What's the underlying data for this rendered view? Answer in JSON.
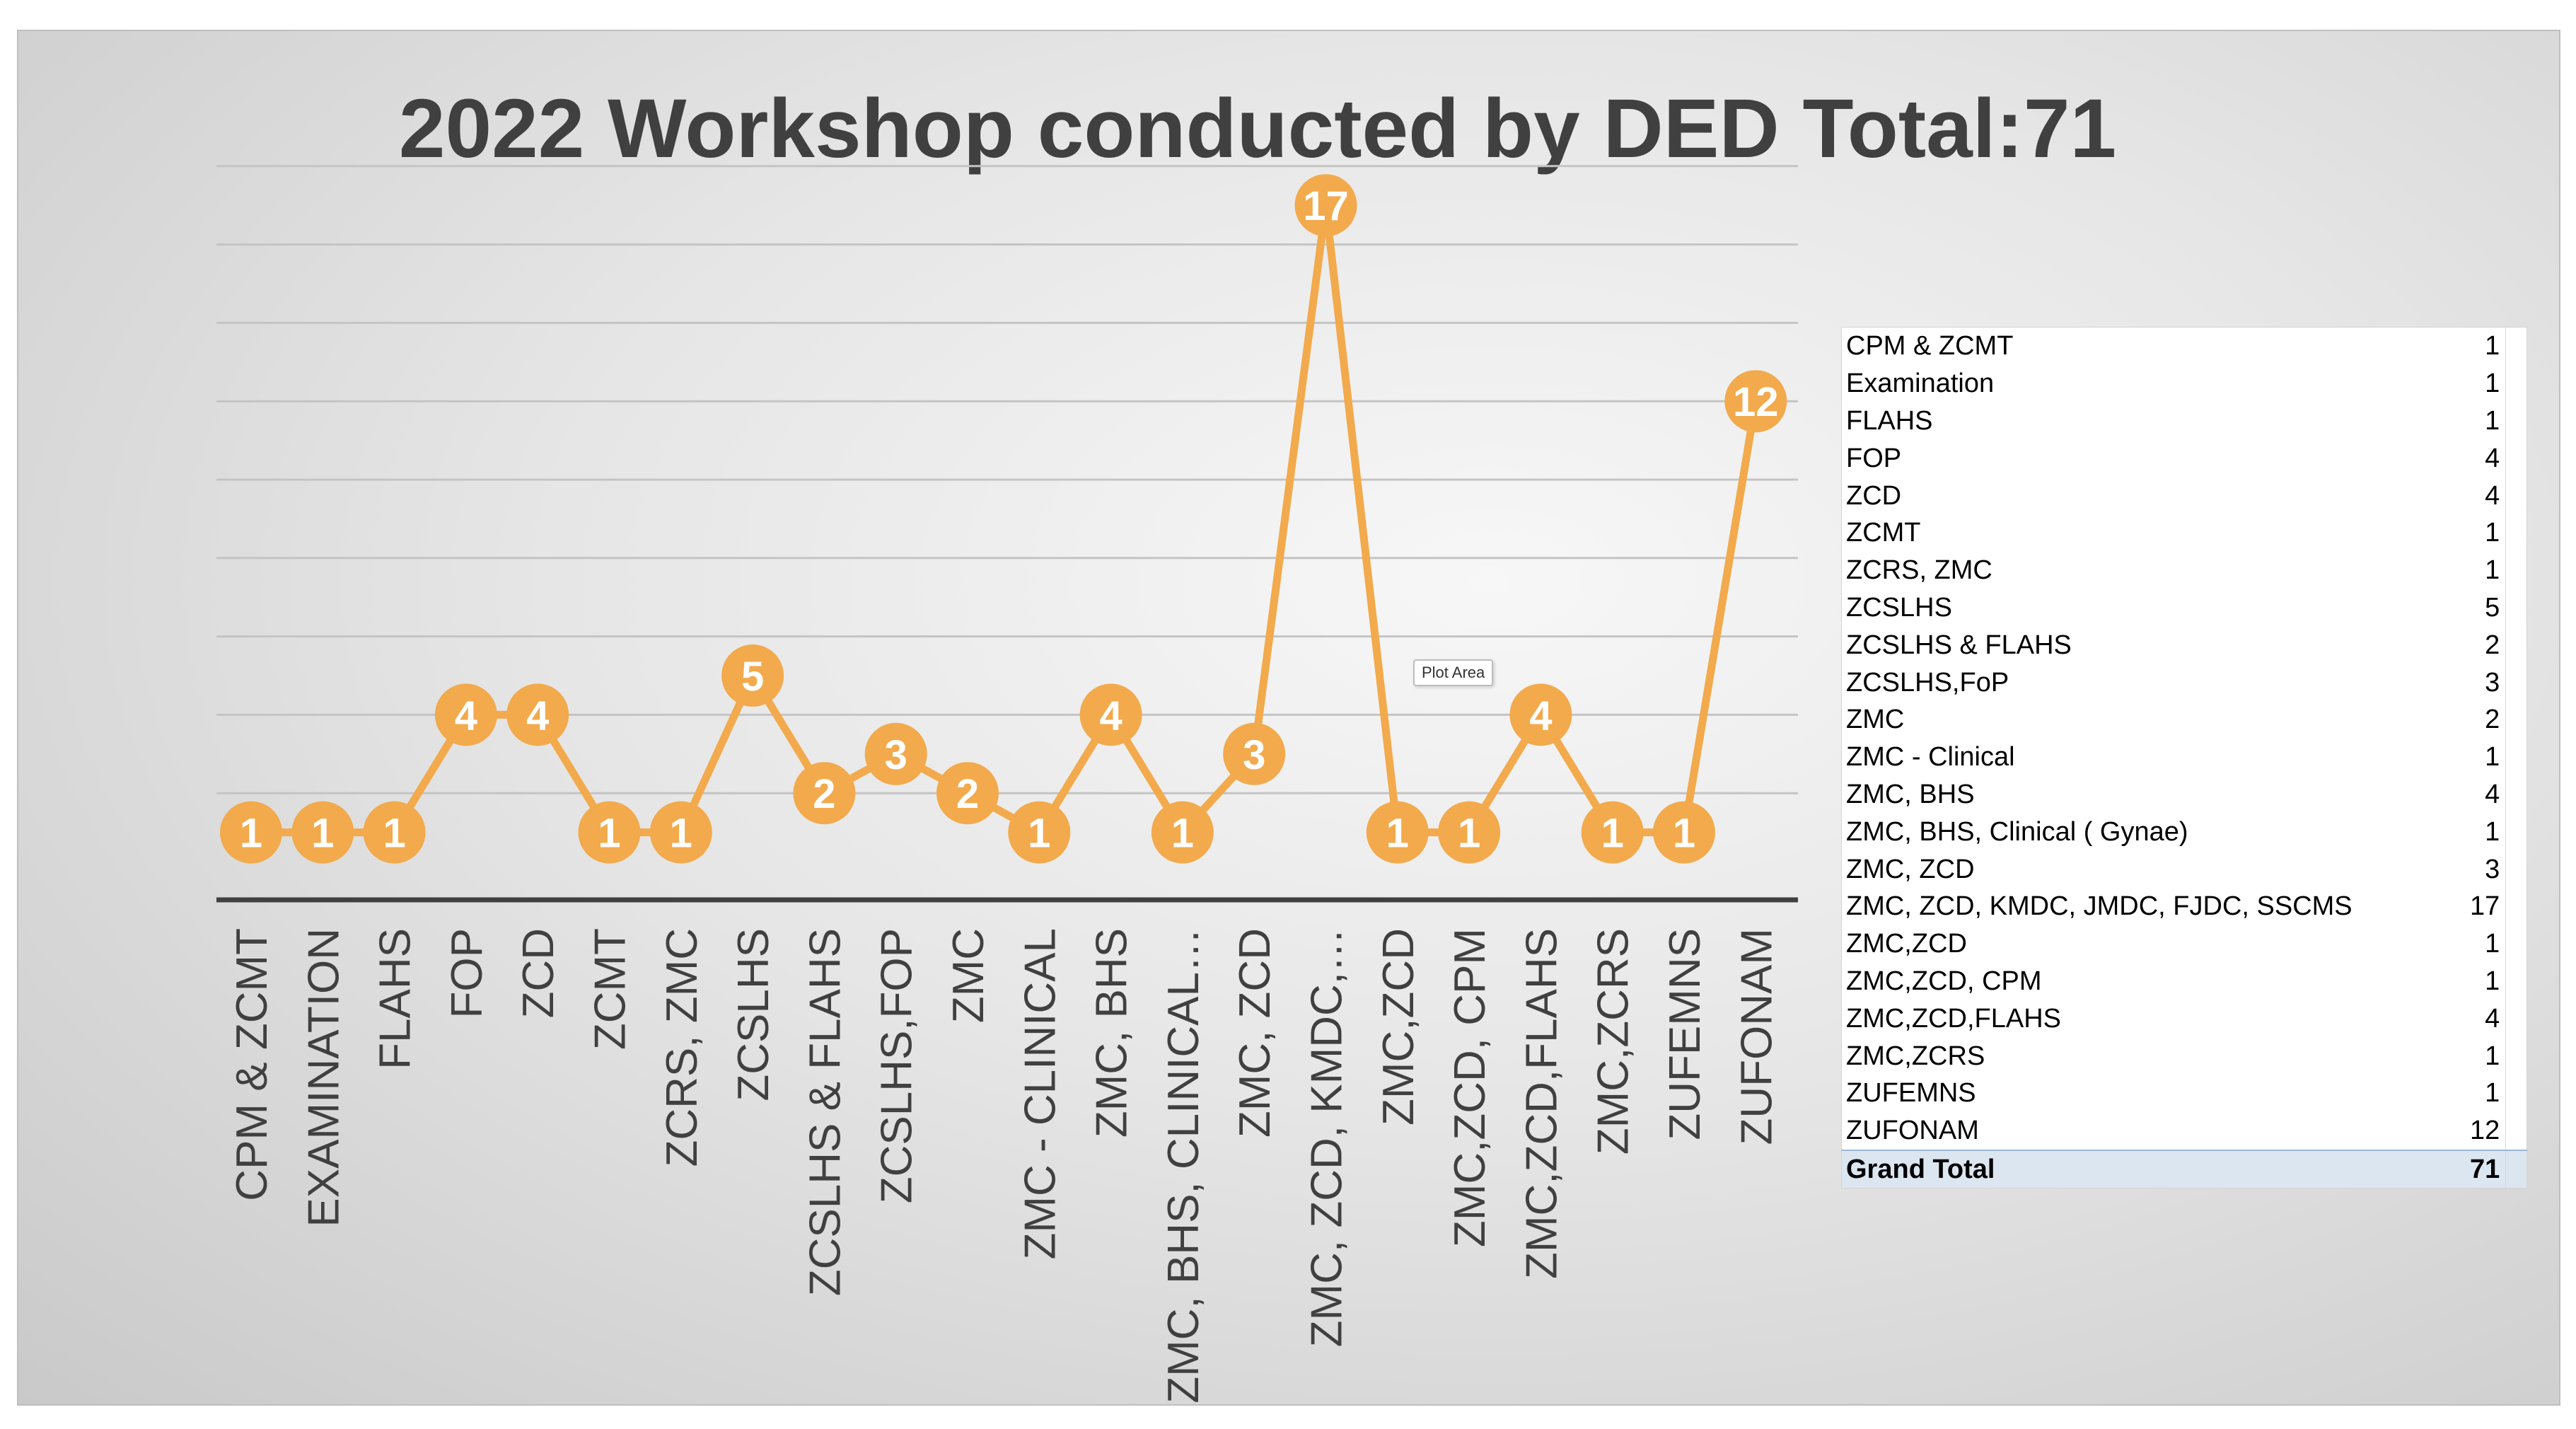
{
  "chart_data": {
    "type": "line",
    "title": "2022 Workshop conducted by DED Total:71",
    "categories": [
      "CPM & ZCMT",
      "EXAMINATION",
      "FLAHS",
      "FOP",
      "ZCD",
      "ZCMT",
      "ZCRS, ZMC",
      "ZCSLHS",
      "ZCSLHS & FLAHS",
      "ZCSLHS,FOP",
      "ZMC",
      "ZMC - CLINICAL",
      "ZMC, BHS",
      "ZMC, BHS, CLINICAL…",
      "ZMC, ZCD",
      "ZMC, ZCD, KMDC,…",
      "ZMC,ZCD",
      "ZMC,ZCD, CPM",
      "ZMC,ZCD,FLAHS",
      "ZMC,ZCRS",
      "ZUFEMNS",
      "ZUFONAM"
    ],
    "series": [
      {
        "values": [
          1,
          1,
          1,
          4,
          4,
          1,
          1,
          5,
          2,
          3,
          2,
          1,
          4,
          1,
          3,
          17,
          1,
          1,
          4,
          1,
          1,
          12
        ]
      }
    ],
    "ylim": [
      0,
      18
    ],
    "grid": true,
    "legend": "none",
    "data_labels": true,
    "colors": {
      "line": "#F2AA4C",
      "marker": "#F2AA4C",
      "label_text": "#FFFFFF",
      "axis": "#404040",
      "grid": "#c4c4c4",
      "title": "#404040"
    }
  },
  "tooltip": {
    "text": "Plot Area"
  },
  "pivot_table": {
    "rows": [
      {
        "label": "CPM & ZCMT",
        "value": "1"
      },
      {
        "label": "Examination",
        "value": "1"
      },
      {
        "label": "FLAHS",
        "value": "1"
      },
      {
        "label": "FOP",
        "value": "4"
      },
      {
        "label": "ZCD",
        "value": "4"
      },
      {
        "label": "ZCMT",
        "value": "1"
      },
      {
        "label": "ZCRS, ZMC",
        "value": "1"
      },
      {
        "label": "ZCSLHS",
        "value": "5"
      },
      {
        "label": "ZCSLHS & FLAHS",
        "value": "2"
      },
      {
        "label": "ZCSLHS,FoP",
        "value": "3"
      },
      {
        "label": "ZMC",
        "value": "2"
      },
      {
        "label": "ZMC - Clinical",
        "value": "1"
      },
      {
        "label": "ZMC, BHS",
        "value": "4"
      },
      {
        "label": "ZMC, BHS, Clinical ( Gynae)",
        "value": "1"
      },
      {
        "label": "ZMC, ZCD",
        "value": "3"
      },
      {
        "label": "ZMC, ZCD, KMDC, JMDC, FJDC, SSCMS",
        "value": "17"
      },
      {
        "label": "ZMC,ZCD",
        "value": "1"
      },
      {
        "label": "ZMC,ZCD,  CPM",
        "value": "1"
      },
      {
        "label": "ZMC,ZCD,FLAHS",
        "value": "4"
      },
      {
        "label": "ZMC,ZCRS",
        "value": "1"
      },
      {
        "label": "ZUFEMNS",
        "value": "1"
      },
      {
        "label": "ZUFONAM",
        "value": "12"
      }
    ],
    "grand_total": {
      "label": "Grand Total",
      "value": "71"
    }
  }
}
